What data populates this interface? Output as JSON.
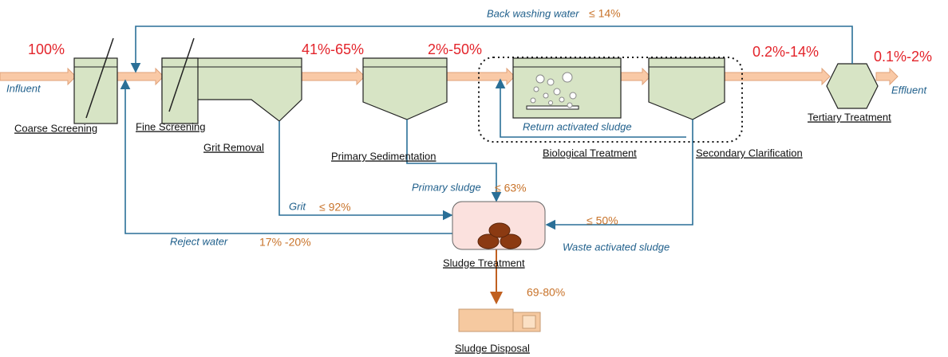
{
  "main_flow": {
    "influent": "Influent",
    "effluent": "Effluent",
    "shares": [
      "100%",
      "41%-65%",
      "2%-50%",
      "0.2%-14%",
      "0.1%-2%"
    ]
  },
  "stages": {
    "coarse_screening": "Coarse Screening",
    "fine_screening": "Fine Screening",
    "grit_removal": "Grit Removal",
    "primary_sedimentation": "Primary Sedimentation",
    "biological_treatment": "Biological Treatment",
    "secondary_clarification": "Secondary Clarification",
    "tertiary_treatment": "Tertiary Treatment",
    "sludge_treatment": "Sludge Treatment",
    "sludge_disposal": "Sludge Disposal"
  },
  "streams": {
    "back_washing": {
      "label": "Back washing water",
      "share": "≤ 14%"
    },
    "return_sludge": {
      "label": "Return activated sludge"
    },
    "primary_sludge": {
      "label": "Primary sludge",
      "share": "≤ 63%"
    },
    "grit": {
      "label": "Grit",
      "share": "≤ 92%"
    },
    "reject_water": {
      "label": "Reject water",
      "share": "17% -20%"
    },
    "waste_sludge": {
      "label": "Waste activated sludge",
      "share": "≤ 50%"
    },
    "disposal": {
      "share": "69-80%"
    }
  }
}
